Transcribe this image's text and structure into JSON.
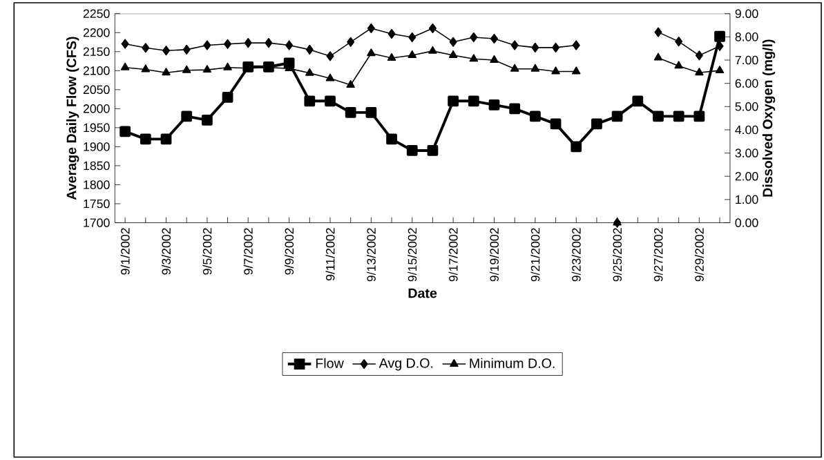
{
  "chart_data": {
    "type": "line",
    "xlabel": "Date",
    "ylabel": "Average Daily Flow (CFS)",
    "y2label": "Dissolved Oxygen (mg/l)",
    "categories": [
      "9/1/2002",
      null,
      "9/3/2002",
      null,
      "9/5/2002",
      null,
      "9/7/2002",
      null,
      "9/9/2002",
      null,
      "9/11/2002",
      null,
      "9/13/2002",
      null,
      "9/15/2002",
      null,
      "9/17/2002",
      null,
      "9/19/2002",
      null,
      "9/21/2002",
      null,
      "9/23/2002",
      null,
      "9/25/2002",
      null,
      "9/27/2002",
      null,
      "9/29/2002",
      null
    ],
    "series": [
      {
        "name": "Flow",
        "color": "#000000",
        "marker": "square",
        "values": [
          1940,
          1920,
          1920,
          1980,
          1970,
          2030,
          2110,
          2110,
          2120,
          2020,
          2020,
          1990,
          1990,
          1920,
          1890,
          1890,
          2020,
          2020,
          2010,
          2000,
          1980,
          1960,
          1900,
          1960,
          1980,
          2020,
          1980,
          1980,
          1980,
          2190
        ]
      },
      {
        "name": "Avg D.O.",
        "color": "#000000",
        "marker": "diamond",
        "axis": "y2",
        "values": [
          7.7,
          7.53,
          7.41,
          7.45,
          7.64,
          7.69,
          7.74,
          7.74,
          7.64,
          7.45,
          7.17,
          7.78,
          8.37,
          8.13,
          7.98,
          8.37,
          7.78,
          7.98,
          7.92,
          7.64,
          7.54,
          7.54,
          7.64,
          null,
          0,
          null,
          8.2,
          7.8,
          7.2,
          7.6
        ]
      },
      {
        "name": "Minimum D.O.",
        "color": "#000000",
        "marker": "triangle",
        "axis": "y2",
        "values": [
          6.68,
          6.6,
          6.46,
          6.56,
          6.58,
          6.68,
          6.65,
          6.68,
          6.64,
          6.44,
          6.21,
          5.93,
          7.29,
          7.09,
          7.21,
          7.39,
          7.21,
          7.05,
          7.0,
          6.62,
          6.62,
          6.51,
          6.51,
          null,
          0,
          null,
          7.1,
          6.75,
          6.46,
          6.55
        ]
      }
    ],
    "ylim": [
      1700,
      2250
    ],
    "yticks": [
      1700,
      1750,
      1800,
      1850,
      1900,
      1950,
      2000,
      2050,
      2100,
      2150,
      2200,
      2250
    ],
    "y2lim": [
      0,
      9
    ],
    "y2ticks": [
      {
        "value": 0,
        "label": "0.00"
      },
      {
        "value": 1,
        "label": "1.00"
      },
      {
        "value": 2,
        "label": "2.00"
      },
      {
        "value": 3,
        "label": "3.00"
      },
      {
        "value": 4,
        "label": "4.00"
      },
      {
        "value": 5,
        "label": "5.00"
      },
      {
        "value": 6,
        "label": "6.00"
      },
      {
        "value": 7,
        "label": "7.00"
      },
      {
        "value": 8,
        "label": "8.00"
      },
      {
        "value": 9,
        "label": "9.00"
      }
    ],
    "grid": false,
    "legend": "bottom",
    "line_style": "solid"
  }
}
